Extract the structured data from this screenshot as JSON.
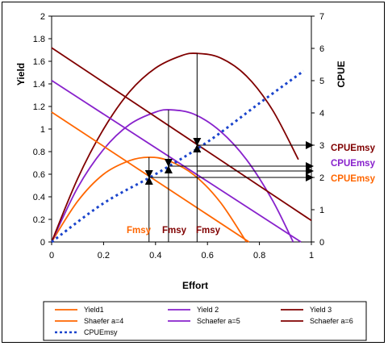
{
  "chart_data": {
    "type": "line",
    "xlabel": "Effort",
    "ylabel": "Yield",
    "y2label": "CPUE",
    "xlim": [
      0,
      1
    ],
    "ylim": [
      0,
      2
    ],
    "y2lim": [
      0,
      7
    ],
    "x_ticks": [
      "0",
      "0.2",
      "0.4",
      "0.6",
      "0.8",
      "1"
    ],
    "y_ticks": [
      "0",
      "0.2",
      "0.4",
      "0.6",
      "0.8",
      "1",
      "1.2",
      "1.4",
      "1.6",
      "1.8",
      "2"
    ],
    "y2_ticks": [
      "0",
      "1",
      "2",
      "3",
      "4",
      "5",
      "6",
      "7"
    ],
    "grid": false,
    "legend_position": "bottom",
    "series": [
      {
        "name": "Yield1",
        "axis": "left",
        "color": "#ff6600",
        "style": "solid",
        "x": [
          0,
          0.1,
          0.2,
          0.3,
          0.375,
          0.45,
          0.55,
          0.65,
          0.75
        ],
        "y": [
          0,
          0.36,
          0.6,
          0.72,
          0.75,
          0.72,
          0.59,
          0.35,
          0
        ]
      },
      {
        "name": "Yield 2",
        "axis": "left",
        "color": "#8822cc",
        "style": "solid",
        "x": [
          0,
          0.1,
          0.2,
          0.3,
          0.4,
          0.46,
          0.55,
          0.65,
          0.75,
          0.85,
          0.93
        ],
        "y": [
          0,
          0.48,
          0.82,
          1.04,
          1.15,
          1.17,
          1.13,
          0.98,
          0.73,
          0.37,
          0
        ]
      },
      {
        "name": "Yield 3",
        "axis": "left",
        "color": "#800000",
        "style": "solid",
        "x": [
          0,
          0.1,
          0.2,
          0.3,
          0.4,
          0.5,
          0.56,
          0.65,
          0.75,
          0.85,
          0.95
        ],
        "y": [
          0,
          0.56,
          1.0,
          1.33,
          1.54,
          1.65,
          1.67,
          1.63,
          1.47,
          1.17,
          0.73
        ]
      },
      {
        "name": "Shaefer a=4",
        "axis": "left",
        "color": "#ff6600",
        "style": "solid",
        "x": [
          0,
          0.76
        ],
        "y": [
          1.15,
          0
        ]
      },
      {
        "name": "Schaefer a=5",
        "axis": "left",
        "color": "#8822cc",
        "style": "solid",
        "x": [
          0,
          0.96
        ],
        "y": [
          1.43,
          0
        ]
      },
      {
        "name": "Schaefer a=6",
        "axis": "left",
        "color": "#800000",
        "style": "solid",
        "x": [
          0,
          1.0
        ],
        "y": [
          1.72,
          0.19
        ]
      },
      {
        "name": "CPUEmsy",
        "axis": "right",
        "color": "#1a44cc",
        "style": "dotted",
        "x": [
          0,
          0.2,
          0.4,
          0.6,
          0.8,
          0.97
        ],
        "y": [
          0,
          1.2,
          2.1,
          3.1,
          4.3,
          5.3
        ]
      }
    ],
    "annotations": [
      {
        "text": "Fmsy",
        "color": "#ff6600",
        "x": 0.375
      },
      {
        "text": "Fmsy",
        "color": "#800000",
        "x": 0.45
      },
      {
        "text": "Fmsy",
        "color": "#800000",
        "x": 0.56
      },
      {
        "text": "CPUEmsy",
        "color": "#800000",
        "y2": 3.0
      },
      {
        "text": "CPUEmsy",
        "color": "#8822cc",
        "y2": 2.35
      },
      {
        "text": "CPUEmsy",
        "color": "#ff6600",
        "y2": 2.0
      }
    ],
    "msy_markers": [
      {
        "x": 0.375,
        "y": 0.75,
        "y2": 2.0
      },
      {
        "x": 0.45,
        "y": 0.75,
        "y2": 2.35
      },
      {
        "x": 0.56,
        "y": 0.85,
        "y2": 3.0
      }
    ]
  }
}
